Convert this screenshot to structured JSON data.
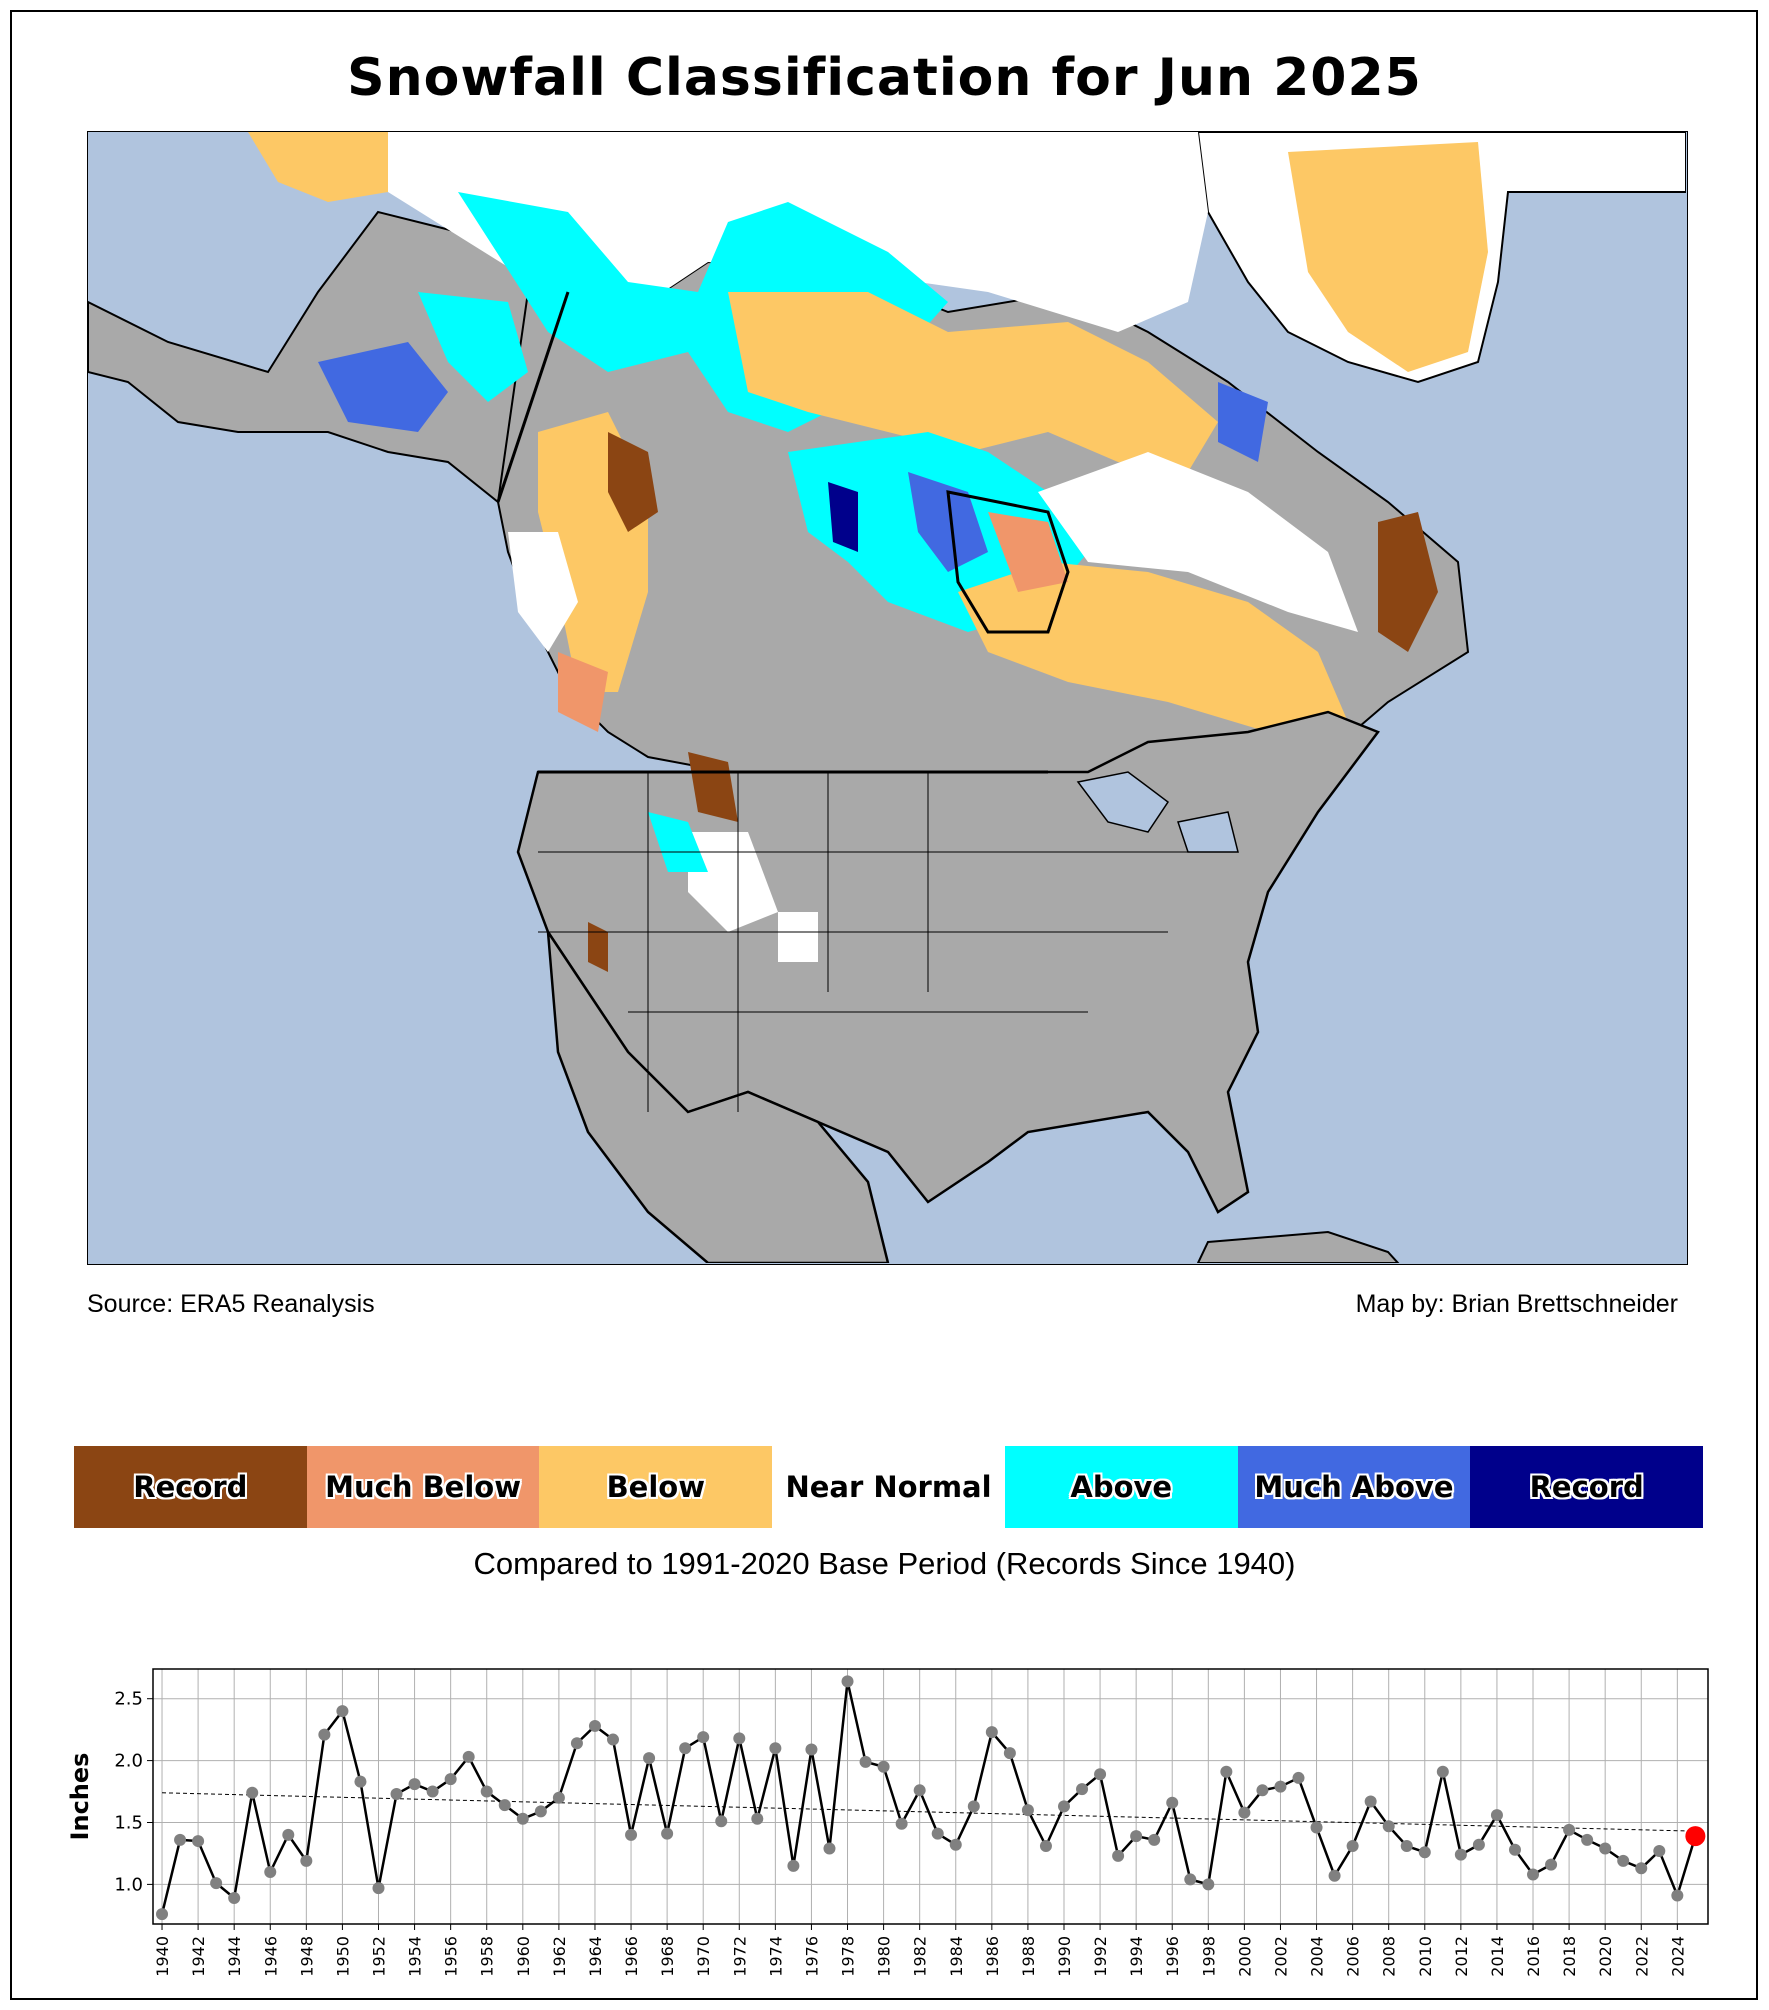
{
  "title": "Snowfall Classification for Jun 2025",
  "credits": {
    "source": "Source: ERA5 Reanalysis",
    "map_by": "Map by: Brian Brettschneider"
  },
  "legend": {
    "items": [
      {
        "label": "Record",
        "color": "#8b4513"
      },
      {
        "label": "Much Below",
        "color": "#f0966a"
      },
      {
        "label": "Below",
        "color": "#fdc865"
      },
      {
        "label": "Near Normal",
        "color": "#ffffff"
      },
      {
        "label": "Above",
        "color": "#00ffff"
      },
      {
        "label": "Much Above",
        "color": "#4169e1"
      },
      {
        "label": "Record",
        "color": "#00008b"
      }
    ],
    "note": "Compared to 1991-2020 Base Period   (Records Since 1940)"
  },
  "map_colors": {
    "ocean": "#b0c4de",
    "land_no_snow": "#a9a9a9",
    "borders": "#000000"
  },
  "chart_data": {
    "type": "line",
    "ylabel": "Inches",
    "xlabel": "",
    "ylim": [
      0.68,
      2.74
    ],
    "xlim": [
      1939.5,
      2025.7
    ],
    "yticks": [
      1.0,
      1.5,
      2.0,
      2.5
    ],
    "xticks": [
      1940,
      1942,
      1944,
      1946,
      1948,
      1950,
      1952,
      1954,
      1956,
      1958,
      1960,
      1962,
      1964,
      1966,
      1968,
      1970,
      1972,
      1974,
      1976,
      1978,
      1980,
      1982,
      1984,
      1986,
      1988,
      1990,
      1992,
      1994,
      1996,
      1998,
      2000,
      2002,
      2004,
      2006,
      2008,
      2010,
      2012,
      2014,
      2016,
      2018,
      2020,
      2022,
      2024
    ],
    "grid": true,
    "series": [
      {
        "years": [
          1940,
          1941,
          1942,
          1943,
          1944,
          1945,
          1946,
          1947,
          1948,
          1949,
          1950,
          1951,
          1952,
          1953,
          1954,
          1955,
          1956,
          1957,
          1958,
          1959,
          1960,
          1961,
          1962,
          1963,
          1964,
          1965,
          1966,
          1967,
          1968,
          1969,
          1970,
          1971,
          1972,
          1973,
          1974,
          1975,
          1976,
          1977,
          1978,
          1979,
          1980,
          1981,
          1982,
          1983,
          1984,
          1985,
          1986,
          1987,
          1988,
          1989,
          1990,
          1991,
          1992,
          1993,
          1994,
          1995,
          1996,
          1997,
          1998,
          1999,
          2000,
          2001,
          2002,
          2003,
          2004,
          2005,
          2006,
          2007,
          2008,
          2009,
          2010,
          2011,
          2012,
          2013,
          2014,
          2015,
          2016,
          2017,
          2018,
          2019,
          2020,
          2021,
          2022,
          2023,
          2024,
          2025
        ],
        "values": [
          0.76,
          1.36,
          1.35,
          1.01,
          0.89,
          1.74,
          1.1,
          1.4,
          1.19,
          2.21,
          2.4,
          1.83,
          0.97,
          1.73,
          1.81,
          1.75,
          1.85,
          2.03,
          1.75,
          1.64,
          1.53,
          1.59,
          1.7,
          2.14,
          2.28,
          2.17,
          1.4,
          2.02,
          1.41,
          2.1,
          2.19,
          1.51,
          2.18,
          1.53,
          2.1,
          1.15,
          2.09,
          1.29,
          2.64,
          1.99,
          1.95,
          1.49,
          1.76,
          1.41,
          1.32,
          1.63,
          2.23,
          2.06,
          1.6,
          1.31,
          1.63,
          1.77,
          1.89,
          1.23,
          1.39,
          1.36,
          1.66,
          1.04,
          1.0,
          1.91,
          1.58,
          1.76,
          1.79,
          1.86,
          1.46,
          1.07,
          1.31,
          1.67,
          1.47,
          1.31,
          1.26,
          1.91,
          1.24,
          1.32,
          1.56,
          1.28,
          1.08,
          1.16,
          1.44,
          1.36,
          1.29,
          1.19,
          1.13,
          1.27,
          0.91,
          1.39
        ]
      }
    ],
    "trend": {
      "start": [
        1940,
        1.74
      ],
      "end": [
        2025,
        1.43
      ]
    },
    "highlight": {
      "year": 2025,
      "value": 1.39,
      "color": "#ff0000"
    },
    "point_color": "#808080",
    "line_color": "#000000"
  }
}
